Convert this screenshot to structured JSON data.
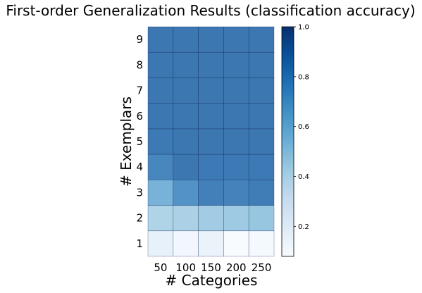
{
  "chart_data": {
    "type": "heatmap",
    "title": "First-order Generalization Results (classification accuracy)",
    "xlabel": "# Categories",
    "ylabel": "# Exemplars",
    "x_categories": [
      "50",
      "100",
      "150",
      "200",
      "250"
    ],
    "y_categories": [
      "1",
      "2",
      "3",
      "4",
      "5",
      "6",
      "7",
      "8",
      "9"
    ],
    "values": [
      [
        0.18,
        0.12,
        0.16,
        0.09,
        0.11
      ],
      [
        0.43,
        0.44,
        0.47,
        0.48,
        0.5
      ],
      [
        0.6,
        0.75,
        0.83,
        0.82,
        0.85
      ],
      [
        0.8,
        0.87,
        0.86,
        0.86,
        0.86
      ],
      [
        0.86,
        0.87,
        0.87,
        0.87,
        0.87
      ],
      [
        0.87,
        0.87,
        0.87,
        0.87,
        0.87
      ],
      [
        0.87,
        0.87,
        0.87,
        0.87,
        0.87
      ],
      [
        0.87,
        0.87,
        0.87,
        0.87,
        0.87
      ],
      [
        0.87,
        0.87,
        0.87,
        0.87,
        0.87
      ]
    ],
    "colormap": "Blues",
    "cell_alpha": 0.8,
    "colorbar": {
      "min": 0.08,
      "max": 1.0,
      "ticks": [
        "0.2",
        "0.4",
        "0.6",
        "0.8",
        "1.0"
      ]
    },
    "grid": false,
    "legend": "none"
  }
}
